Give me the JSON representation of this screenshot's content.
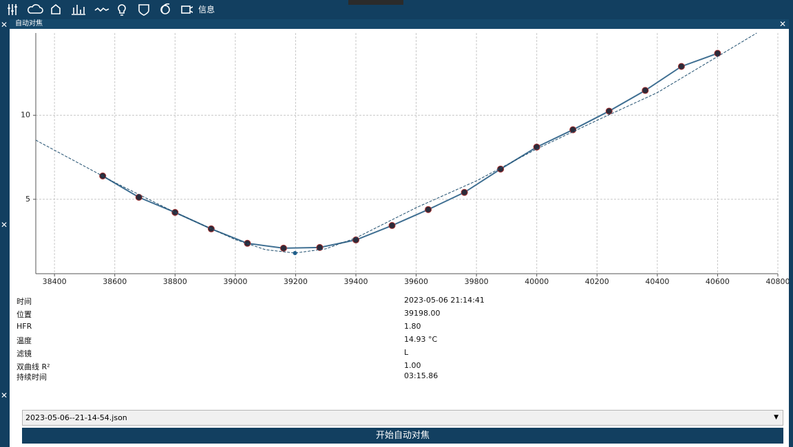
{
  "toolbar": {
    "info": "信息"
  },
  "panel": {
    "title": "自动对焦"
  },
  "chart_data": {
    "type": "line",
    "xlim": [
      38338,
      40800
    ],
    "ylim": [
      0.57,
      14.9
    ],
    "xticks": [
      38400,
      38600,
      38800,
      39000,
      39200,
      39400,
      39600,
      39800,
      40000,
      40200,
      40400,
      40600,
      40800
    ],
    "yticks": [
      5,
      10
    ],
    "grid": true,
    "series": [
      {
        "style": "line+markers",
        "color": "#3f6f92",
        "x": [
          38560,
          38680,
          38800,
          38920,
          39040,
          39160,
          39280,
          39400,
          39520,
          39640,
          39760,
          39880,
          40000,
          40120,
          40240,
          40360,
          40480,
          40600
        ],
        "values": [
          6.39,
          5.12,
          4.22,
          3.24,
          2.38,
          2.09,
          2.13,
          2.58,
          3.44,
          4.39,
          5.41,
          6.8,
          8.11,
          9.14,
          10.25,
          11.48,
          12.91,
          13.69
        ]
      },
      {
        "style": "dashed",
        "color": "#1f4e6e",
        "x": [
          38338,
          38600,
          38800,
          39000,
          39100,
          39198,
          39300,
          39400,
          39600,
          39800,
          40000,
          40200,
          40400,
          40600,
          40730
        ],
        "values": [
          8.52,
          6.0,
          4.22,
          2.6,
          2.0,
          1.8,
          2.05,
          2.7,
          4.5,
          6.1,
          8.0,
          9.7,
          11.35,
          13.5,
          14.9
        ]
      },
      {
        "style": "markers",
        "color": "#1f5f8b",
        "x": [
          39198
        ],
        "values": [
          1.8
        ]
      }
    ]
  },
  "info": {
    "rows": [
      [
        "时间",
        "2023-05-06 21:14:41"
      ],
      [
        "位置",
        "39198.00"
      ],
      [
        "HFR",
        "1.80"
      ],
      [
        "温度",
        "14.93 °C"
      ],
      [
        "滤镜",
        "L"
      ],
      [
        "双曲线 R²",
        "1.00"
      ],
      [
        "持续时间",
        "03:15.86"
      ]
    ]
  },
  "dropdown": {
    "selected": "2023-05-06--21-14-54.json"
  },
  "button": {
    "label": "开始自动对焦"
  }
}
